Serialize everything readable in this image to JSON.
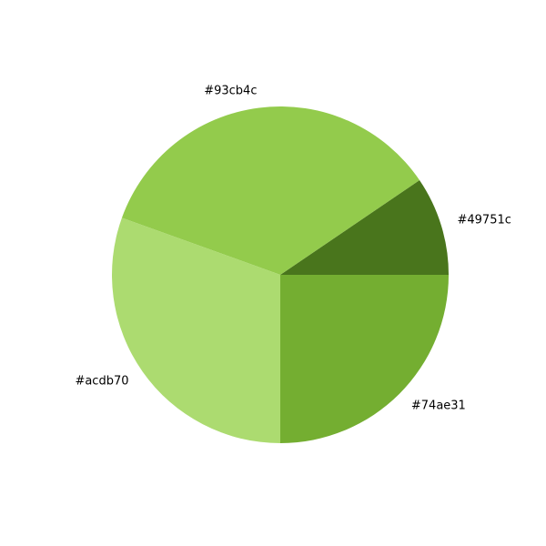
{
  "chart_data": {
    "type": "pie",
    "title": "",
    "slices": [
      {
        "label": "#49751c",
        "value": 9.5,
        "color": "#49751c"
      },
      {
        "label": "#93cb4c",
        "value": 35.0,
        "color": "#93cb4c"
      },
      {
        "label": "#acdb70",
        "value": 30.5,
        "color": "#acdb70"
      },
      {
        "label": "#74ae31",
        "value": 25.0,
        "color": "#74ae31"
      }
    ],
    "start_angle_deg": 0,
    "direction": "counterclockwise",
    "legend": "none"
  }
}
